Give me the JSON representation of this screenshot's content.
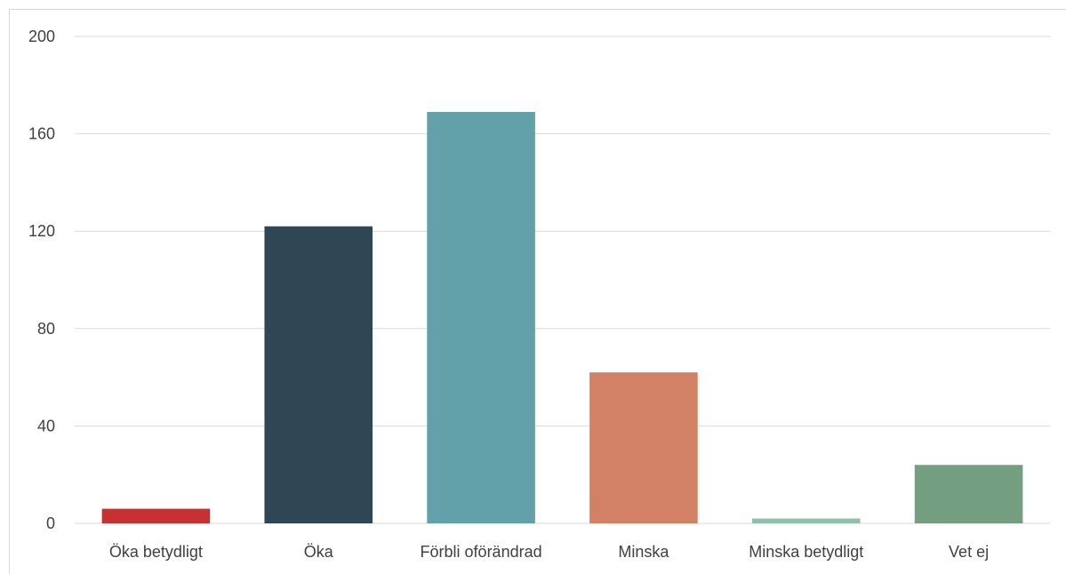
{
  "chart_data": {
    "type": "bar",
    "categories": [
      "Öka betydligt",
      "Öka",
      "Förbli oförändrad",
      "Minska",
      "Minska betydligt",
      "Vet ej"
    ],
    "values": [
      6,
      122,
      169,
      62,
      2,
      24
    ],
    "colors": [
      "#c63232",
      "#2f4654",
      "#62a0aa",
      "#d38164",
      "#8fc2ac",
      "#739f80"
    ],
    "title": "",
    "xlabel": "",
    "ylabel": "",
    "ylim": [
      0,
      200
    ],
    "yticks": [
      0,
      40,
      80,
      120,
      160,
      200
    ],
    "grid": true,
    "legend": "none"
  }
}
